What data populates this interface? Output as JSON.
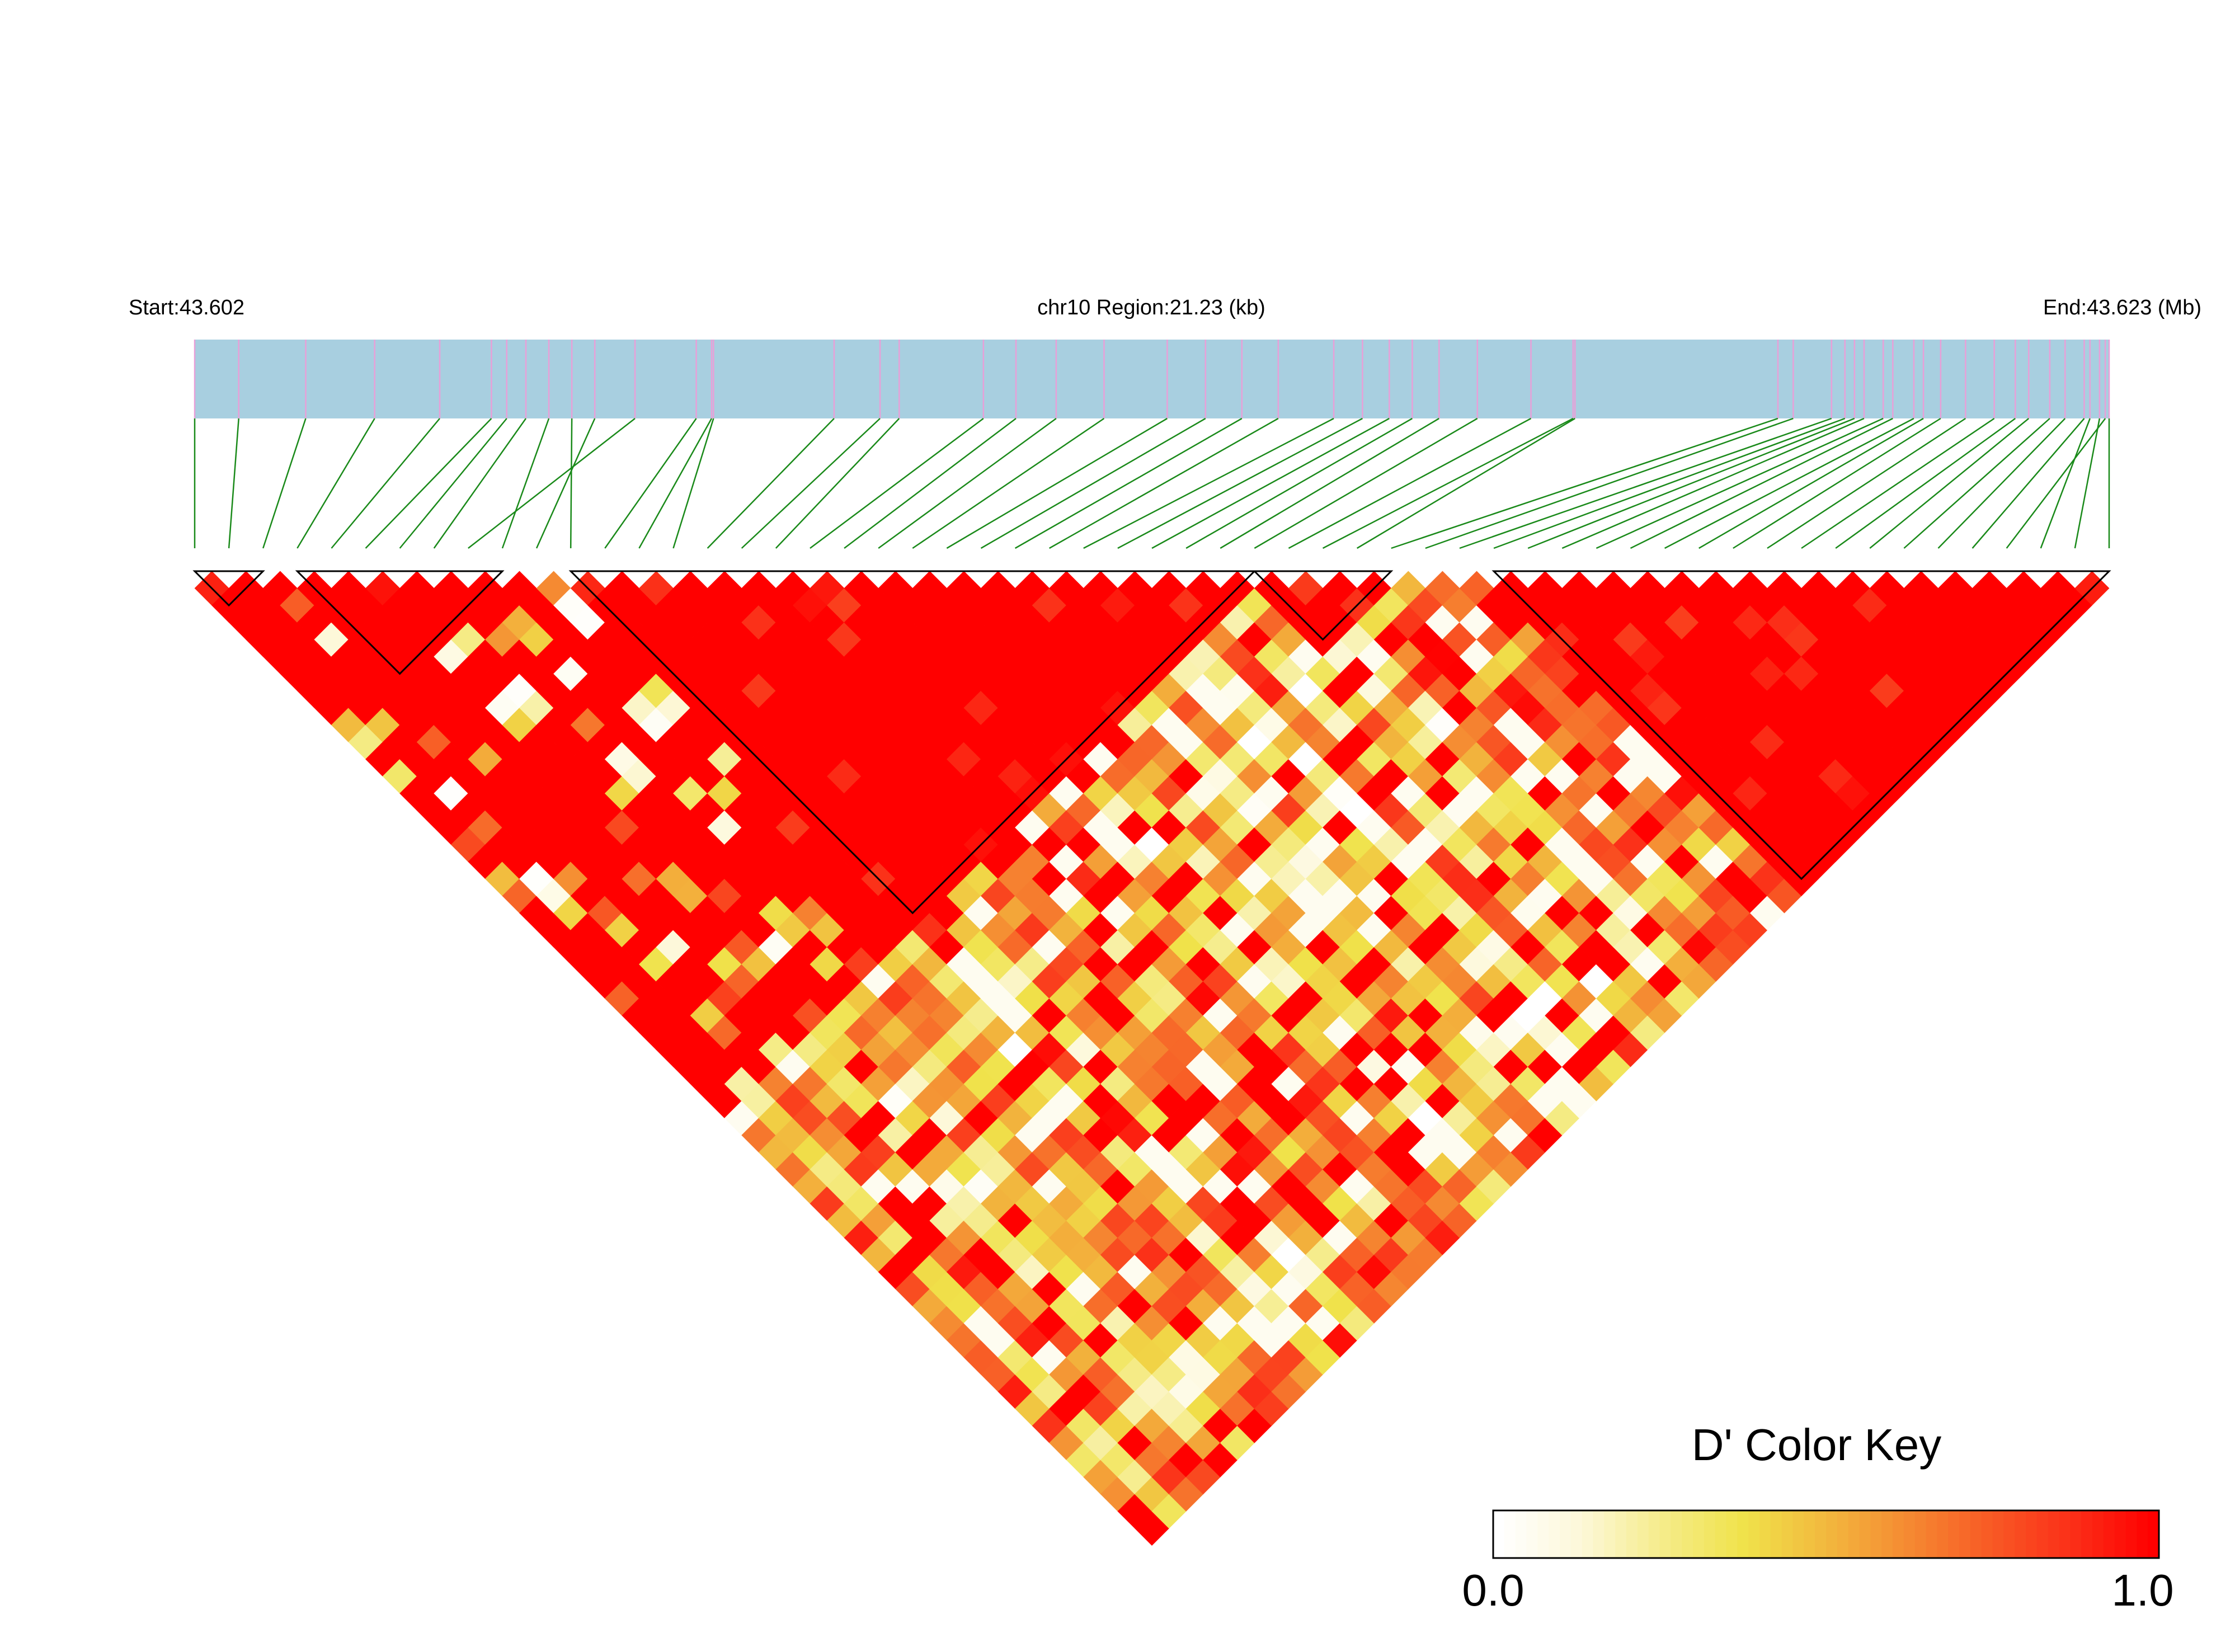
{
  "chart_data": {
    "type": "heatmap",
    "subtype": "ld_heatmap",
    "start_label": "Start:43.602",
    "region_label": "chr10 Region:21.23 (kb)",
    "end_label": "End:43.623 (Mb)",
    "chromosome": "chr10",
    "region_kb": 21.23,
    "start_mb": 43.602,
    "end_mb": 43.623,
    "n_snps": 57,
    "snp_positions_fraction": [
      0.0,
      0.023,
      0.058,
      0.094,
      0.128,
      0.155,
      0.163,
      0.173,
      0.23,
      0.185,
      0.209,
      0.197,
      0.262,
      0.27,
      0.271,
      0.334,
      0.358,
      0.368,
      0.412,
      0.429,
      0.45,
      0.475,
      0.508,
      0.528,
      0.547,
      0.566,
      0.595,
      0.61,
      0.624,
      0.636,
      0.65,
      0.67,
      0.698,
      0.72,
      0.721,
      0.827,
      0.835,
      0.855,
      0.862,
      0.867,
      0.872,
      0.882,
      0.887,
      0.898,
      0.903,
      0.912,
      0.925,
      0.94,
      0.951,
      0.958,
      0.969,
      0.977,
      0.987,
      0.998,
      0.99,
      0.995,
      1.0
    ],
    "blocks": [
      [
        0,
        2
      ],
      [
        3,
        9
      ],
      [
        11,
        31
      ],
      [
        31,
        35
      ],
      [
        38,
        56
      ]
    ],
    "color_key": {
      "title": "D' Color Key",
      "min_label": "0.0",
      "max_label": "1.0",
      "range": [
        0,
        1
      ],
      "colors": [
        "#ffffff",
        "#fdf8d9",
        "#f5ec8a",
        "#f0e24a",
        "#f2b83e",
        "#f58a32",
        "#f85a25",
        "#fb2f18",
        "#ff0000"
      ]
    },
    "colors": {
      "track_fill": "#a8cfe0",
      "snp_tick": "#e8a0d8",
      "connector": "#1a8a1a",
      "block_outline": "#000000",
      "high_ld": "#ff0000"
    }
  }
}
